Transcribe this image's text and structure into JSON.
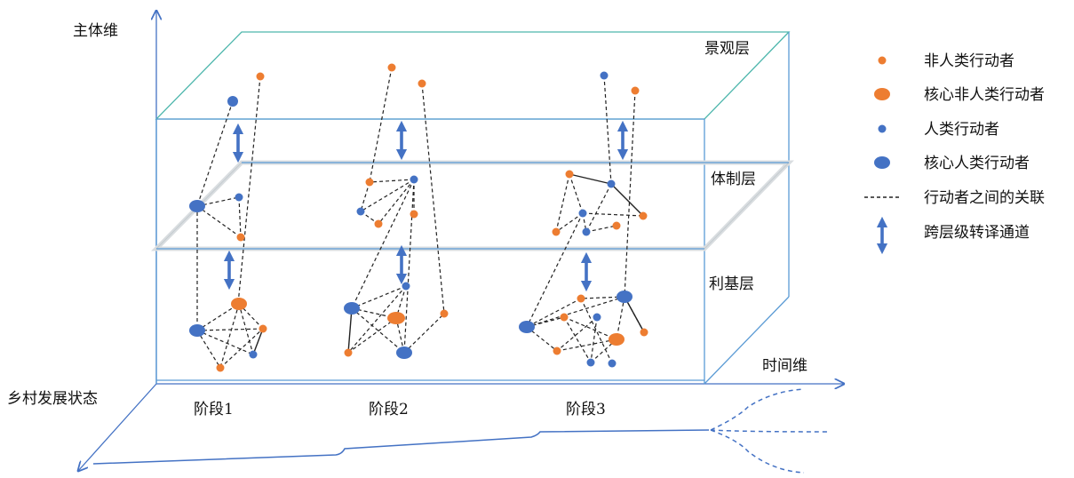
{
  "axes": {
    "subject": "主体维",
    "time": "时间维",
    "rural": "乡村发展状态"
  },
  "layers": {
    "landscape": "景观层",
    "institution": "体制层",
    "interest": "利基层"
  },
  "stages": [
    "阶段1",
    "阶段2",
    "阶段3"
  ],
  "legend": {
    "non_human": "非人类行动者",
    "core_non_human": "核心非人类行动者",
    "human": "人类行动者",
    "core_human": "核心人类行动者",
    "relation": "行动者之间的关联",
    "channel": "跨层级转译通道"
  },
  "colors": {
    "orange": "#ED7D31",
    "blue": "#4472C4",
    "box": "#5B9BD5",
    "top_face": "#4DB6AC"
  }
}
